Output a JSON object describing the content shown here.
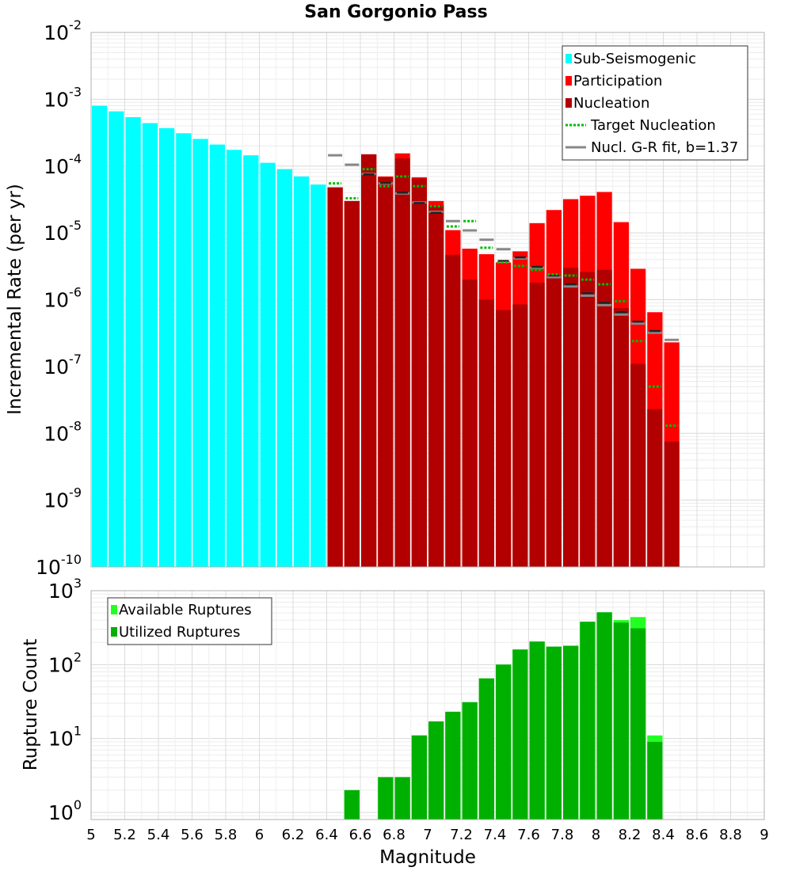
{
  "chart_data": [
    {
      "type": "bar",
      "title": "San Gorgonio Pass",
      "ylabel": "Incremental Rate (per yr)",
      "yscale": "log",
      "ylim": [
        1e-10,
        0.01
      ],
      "xlim": [
        5,
        9
      ],
      "legend_position": "top-right",
      "grid": true,
      "y_ticks": [
        {
          "base": "10",
          "exp": "-10",
          "value": 1e-10
        },
        {
          "base": "10",
          "exp": "-9",
          "value": 1e-09
        },
        {
          "base": "10",
          "exp": "-8",
          "value": 1e-08
        },
        {
          "base": "10",
          "exp": "-7",
          "value": 1e-07
        },
        {
          "base": "10",
          "exp": "-6",
          "value": 1e-06
        },
        {
          "base": "10",
          "exp": "-5",
          "value": 1e-05
        },
        {
          "base": "10",
          "exp": "-4",
          "value": 0.0001
        },
        {
          "base": "10",
          "exp": "-3",
          "value": 0.001
        },
        {
          "base": "10",
          "exp": "-2",
          "value": 0.01
        }
      ],
      "legend": [
        {
          "label": "Sub-Seismogenic",
          "color": "#00ffff",
          "style": "bar"
        },
        {
          "label": "Participation",
          "color": "#ff0000",
          "style": "bar"
        },
        {
          "label": "Nucleation",
          "color": "#b20000",
          "style": "bar"
        },
        {
          "label": "Target Nucleation",
          "color": "#00bb00",
          "style": "dotted"
        },
        {
          "label": "Nucl. G-R fit, b=1.37",
          "color": "#888888",
          "style": "line"
        }
      ],
      "sub_seismogenic": {
        "color": "#00ffff",
        "x": [
          5.05,
          5.15,
          5.25,
          5.35,
          5.45,
          5.55,
          5.65,
          5.75,
          5.85,
          5.95,
          6.05,
          6.15,
          6.25,
          6.35
        ],
        "values": [
          0.0008,
          0.00066,
          0.00054,
          0.00044,
          0.00037,
          0.00031,
          0.000255,
          0.00021,
          0.000175,
          0.000145,
          0.000112,
          9e-05,
          7e-05,
          5.3e-05
        ]
      },
      "participation": {
        "color": "#ff0000",
        "x": [
          6.45,
          6.55,
          6.65,
          6.75,
          6.85,
          6.95,
          7.05,
          7.15,
          7.25,
          7.35,
          7.45,
          7.55,
          7.65,
          7.75,
          7.85,
          7.95,
          8.05,
          8.15,
          8.25,
          8.35,
          8.45
        ],
        "values": [
          4.8e-05,
          3e-05,
          0.00015,
          7e-05,
          0.000155,
          6.8e-05,
          3e-05,
          1.1e-05,
          5.8e-06,
          4.8e-06,
          3.6e-06,
          5.3e-06,
          1.4e-05,
          2.2e-05,
          3.2e-05,
          3.6e-05,
          4.1e-05,
          1.45e-05,
          2.9e-06,
          6.5e-07,
          2.3e-07
        ]
      },
      "nucleation": {
        "color": "#b20000",
        "x": [
          6.45,
          6.55,
          6.65,
          6.75,
          6.85,
          6.95,
          7.05,
          7.15,
          7.25,
          7.35,
          7.45,
          7.55,
          7.65,
          7.75,
          7.85,
          7.95,
          8.05,
          8.15,
          8.25,
          8.35,
          8.45
        ],
        "values": [
          4.8e-05,
          3e-05,
          0.00015,
          6.8e-05,
          0.00013,
          6.5e-05,
          2.6e-05,
          4.7e-06,
          2e-06,
          1e-06,
          7e-07,
          8.5e-07,
          1.8e-06,
          2.3e-06,
          3e-06,
          2.6e-06,
          2.8e-06,
          7.5e-07,
          1.1e-07,
          2.3e-08,
          7.5e-09
        ]
      },
      "target_nucleation": {
        "color": "#00bb00",
        "x": [
          6.45,
          6.55,
          6.65,
          6.75,
          6.85,
          6.95,
          7.05,
          7.15,
          7.25,
          7.35,
          7.45,
          7.55,
          7.65,
          7.75,
          7.85,
          7.95,
          8.05,
          8.15,
          8.25,
          8.35,
          8.45
        ],
        "values": [
          5.5e-05,
          3.3e-05,
          9e-05,
          5e-05,
          7e-05,
          5e-05,
          2.5e-05,
          1.25e-05,
          1.5e-05,
          6e-06,
          3.6e-06,
          3.2e-06,
          2.8e-06,
          2.4e-06,
          2.3e-06,
          2e-06,
          1.7e-06,
          9.5e-07,
          2.4e-07,
          5e-08,
          1.3e-08
        ]
      },
      "gr_fit": {
        "color": "#888888",
        "x": [
          6.45,
          6.55,
          6.65,
          6.75,
          6.85,
          6.95,
          7.05,
          7.15,
          7.25,
          7.35,
          7.45,
          7.55,
          7.65,
          7.75,
          7.85,
          7.95,
          8.05,
          8.15,
          8.25,
          8.35,
          8.45
        ],
        "values": [
          0.000145,
          0.000105,
          7.6e-05,
          5.5e-05,
          3.9e-05,
          2.85e-05,
          2.07e-05,
          1.5e-05,
          1.09e-05,
          7.9e-06,
          5.7e-06,
          4.15e-06,
          3e-06,
          2.18e-06,
          1.58e-06,
          1.15e-06,
          8.3e-07,
          6e-07,
          4.4e-07,
          3.2e-07,
          2.5e-07
        ]
      },
      "nucl_gr_dashes": {
        "color": "#222222",
        "x": [
          6.65,
          6.75,
          6.85,
          6.95,
          7.05,
          7.45,
          7.55,
          7.65,
          7.75,
          7.85,
          7.95,
          8.05,
          8.15,
          8.25,
          8.35
        ],
        "values": [
          7.5e-05,
          5.6e-05,
          4e-05,
          2.8e-05,
          2e-05,
          3.8e-06,
          4.3e-06,
          3.1e-06,
          2.3e-06,
          1.7e-06,
          1.25e-06,
          9e-07,
          6.5e-07,
          4.7e-07,
          3.4e-07
        ]
      }
    },
    {
      "type": "bar",
      "ylabel": "Rupture Count",
      "xlabel": "Magnitude",
      "yscale": "log",
      "ylim": [
        0.8,
        1000
      ],
      "xlim": [
        5,
        9
      ],
      "legend_position": "top-left",
      "grid": true,
      "x_ticks": [
        "5",
        "5.2",
        "5.4",
        "5.6",
        "5.8",
        "6",
        "6.2",
        "6.4",
        "6.6",
        "6.8",
        "7",
        "7.2",
        "7.4",
        "7.6",
        "7.8",
        "8",
        "8.2",
        "8.4",
        "8.6",
        "8.8",
        "9"
      ],
      "y_ticks": [
        {
          "base": "10",
          "exp": "0",
          "value": 1
        },
        {
          "base": "10",
          "exp": "1",
          "value": 10
        },
        {
          "base": "10",
          "exp": "2",
          "value": 100
        },
        {
          "base": "10",
          "exp": "3",
          "value": 1000
        }
      ],
      "legend": [
        {
          "label": "Available Ruptures",
          "color": "#22ff22",
          "style": "bar"
        },
        {
          "label": "Utilized Ruptures",
          "color": "#00b000",
          "style": "bar"
        }
      ],
      "available": {
        "color": "#22ff22",
        "x": [
          6.55,
          6.75,
          6.85,
          6.95,
          7.05,
          7.15,
          7.25,
          7.35,
          7.45,
          7.55,
          7.65,
          7.75,
          7.85,
          7.95,
          8.05,
          8.15,
          8.25,
          8.35
        ],
        "values": [
          2,
          3,
          3,
          11,
          17,
          23,
          31,
          65,
          100,
          160,
          205,
          175,
          180,
          380,
          510,
          400,
          440,
          11
        ]
      },
      "utilized": {
        "color": "#00b000",
        "x": [
          6.55,
          6.75,
          6.85,
          6.95,
          7.05,
          7.15,
          7.25,
          7.35,
          7.45,
          7.55,
          7.65,
          7.75,
          7.85,
          7.95,
          8.05,
          8.15,
          8.25,
          8.35
        ],
        "values": [
          2,
          3,
          3,
          11,
          17,
          23,
          31,
          65,
          100,
          160,
          205,
          175,
          180,
          380,
          510,
          370,
          310,
          9
        ]
      }
    }
  ]
}
